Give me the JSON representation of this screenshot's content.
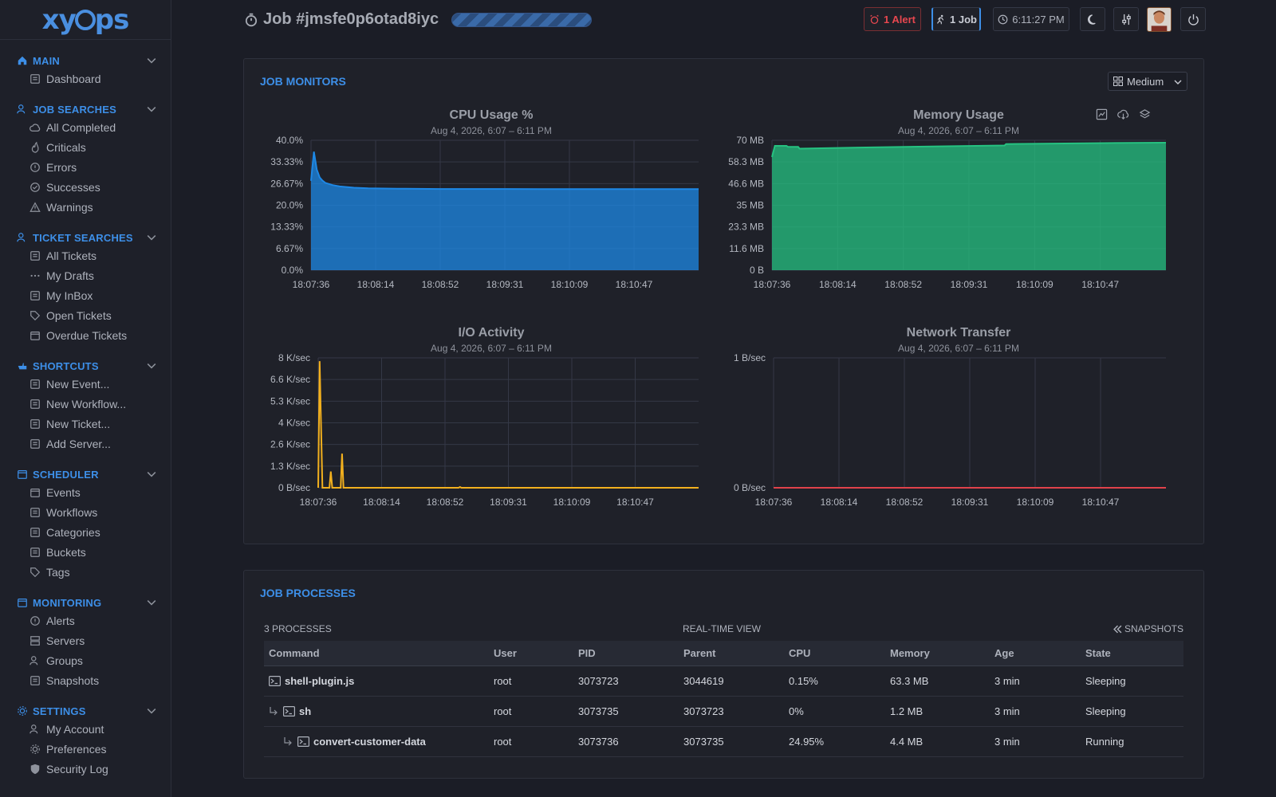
{
  "app": {
    "logo_text_a": "xy",
    "logo_text_b": "ps"
  },
  "sidebar": {
    "sections": [
      {
        "title": "MAIN",
        "icon": "home-icon",
        "items": [
          {
            "label": "Dashboard",
            "icon": "dashboard-icon"
          }
        ]
      },
      {
        "title": "JOB SEARCHES",
        "icon": "user-search-icon",
        "items": [
          {
            "label": "All Completed",
            "icon": "cloud-check-icon"
          },
          {
            "label": "Criticals",
            "icon": "fire-icon"
          },
          {
            "label": "Errors",
            "icon": "alert-circle-icon"
          },
          {
            "label": "Successes",
            "icon": "check-circle-icon"
          },
          {
            "label": "Warnings",
            "icon": "warning-triangle-icon"
          }
        ]
      },
      {
        "title": "TICKET SEARCHES",
        "icon": "ticket-search-icon",
        "items": [
          {
            "label": "All Tickets",
            "icon": "tickets-icon"
          },
          {
            "label": "My Drafts",
            "icon": "dots-icon"
          },
          {
            "label": "My InBox",
            "icon": "inbox-icon"
          },
          {
            "label": "Open Tickets",
            "icon": "label-icon"
          },
          {
            "label": "Overdue Tickets",
            "icon": "calendar-alert-icon"
          }
        ]
      },
      {
        "title": "SHORTCUTS",
        "icon": "hand-pointer-icon",
        "items": [
          {
            "label": "New Event...",
            "icon": "new-event-icon"
          },
          {
            "label": "New Workflow...",
            "icon": "new-workflow-icon"
          },
          {
            "label": "New Ticket...",
            "icon": "new-ticket-icon"
          },
          {
            "label": "Add Server...",
            "icon": "add-server-icon"
          }
        ]
      },
      {
        "title": "SCHEDULER",
        "icon": "calendar-icon",
        "items": [
          {
            "label": "Events",
            "icon": "calendar-clock-icon"
          },
          {
            "label": "Workflows",
            "icon": "workflow-icon"
          },
          {
            "label": "Categories",
            "icon": "folder-icon"
          },
          {
            "label": "Buckets",
            "icon": "bucket-icon"
          },
          {
            "label": "Tags",
            "icon": "tag-icon"
          }
        ]
      },
      {
        "title": "MONITORING",
        "icon": "monitor-camera-icon",
        "items": [
          {
            "label": "Alerts",
            "icon": "alarm-icon"
          },
          {
            "label": "Servers",
            "icon": "server-icon"
          },
          {
            "label": "Groups",
            "icon": "group-icon"
          },
          {
            "label": "Snapshots",
            "icon": "monitor-icon"
          }
        ]
      },
      {
        "title": "SETTINGS",
        "icon": "cogs-icon",
        "items": [
          {
            "label": "My Account",
            "icon": "account-icon"
          },
          {
            "label": "Preferences",
            "icon": "preferences-icon"
          },
          {
            "label": "Security Log",
            "icon": "shield-icon"
          }
        ]
      }
    ]
  },
  "header": {
    "job_title": "Job #jmsfe0p6otad8iyc",
    "alert_label": "1 Alert",
    "jobs_label": "1 Job",
    "clock": "6:11:27 PM"
  },
  "monitors": {
    "title": "JOB MONITORS",
    "size_select": "Medium"
  },
  "chart_data": [
    {
      "type": "area",
      "title": "CPU Usage %",
      "subtitle": "Aug 4, 2026, 6:07 – 6:11 PM",
      "color": "#1e88e5",
      "y_ticks": [
        "40.0%",
        "33.33%",
        "26.67%",
        "20.0%",
        "13.33%",
        "6.67%",
        "0.0%"
      ],
      "x_ticks": [
        "18:07:36",
        "18:08:14",
        "18:08:52",
        "18:09:31",
        "18:10:09",
        "18:10:47"
      ],
      "ylim": [
        0,
        40
      ],
      "x": [
        0,
        2,
        4,
        6,
        8,
        10,
        15,
        20,
        30,
        40,
        60,
        90,
        120,
        160,
        200,
        240,
        271
      ],
      "y": [
        27.5,
        36.5,
        31,
        28.6,
        27.6,
        26.9,
        26.2,
        25.8,
        25.4,
        25.2,
        25.1,
        25.0,
        25.0,
        24.95,
        24.95,
        24.95,
        24.95
      ]
    },
    {
      "type": "area",
      "title": "Memory Usage",
      "subtitle": "Aug 4, 2026, 6:07 – 6:11 PM",
      "color": "#26c281",
      "y_ticks": [
        "70 MB",
        "58.3 MB",
        "46.6 MB",
        "35 MB",
        "23.3 MB",
        "11.6 MB",
        "0 B"
      ],
      "x_ticks": [
        "18:07:36",
        "18:08:14",
        "18:08:52",
        "18:09:31",
        "18:10:09",
        "18:10:47"
      ],
      "ylim": [
        0,
        70
      ],
      "x": [
        0,
        2,
        3,
        10,
        11,
        18,
        19,
        60,
        120,
        160,
        161,
        230,
        271
      ],
      "y": [
        61,
        67,
        67,
        67,
        66.5,
        66.5,
        65.5,
        66.1,
        66.8,
        67.2,
        68,
        68.5,
        68.7
      ]
    },
    {
      "type": "line",
      "title": "I/O Activity",
      "subtitle": "Aug 4, 2026, 6:07 – 6:11 PM",
      "color": "#f2b01e",
      "y_ticks": [
        "8 K/sec",
        "6.6 K/sec",
        "5.3 K/sec",
        "4 K/sec",
        "2.6 K/sec",
        "1.3 K/sec",
        "0 B/sec"
      ],
      "x_ticks": [
        "18:07:36",
        "18:08:14",
        "18:08:52",
        "18:09:31",
        "18:10:09",
        "18:10:47"
      ],
      "ylim": [
        0,
        8
      ],
      "x": [
        0,
        1,
        3,
        8,
        9,
        10,
        16,
        17,
        18,
        100,
        101,
        102,
        271
      ],
      "y": [
        0,
        7.8,
        0,
        0,
        1.0,
        0,
        0,
        2.1,
        0,
        0,
        0.05,
        0,
        0
      ]
    },
    {
      "type": "line",
      "title": "Network Transfer",
      "subtitle": "Aug 4, 2026, 6:07 – 6:11 PM",
      "color": "#e0424b",
      "y_ticks": [
        "1 B/sec",
        "0 B/sec"
      ],
      "x_ticks": [
        "18:07:36",
        "18:08:14",
        "18:08:52",
        "18:09:31",
        "18:10:09",
        "18:10:47"
      ],
      "ylim": [
        0,
        1
      ],
      "x": [
        0,
        271
      ],
      "y": [
        0,
        0
      ]
    }
  ],
  "processes": {
    "title": "JOB PROCESSES",
    "count": "3 PROCESSES",
    "view": "REAL-TIME VIEW",
    "snapshots": "SNAPSHOTS",
    "columns": [
      "Command",
      "User",
      "PID",
      "Parent",
      "CPU",
      "Memory",
      "Age",
      "State"
    ],
    "rows": [
      {
        "command": "shell-plugin.js",
        "depth": 0,
        "user": "root",
        "pid": "3073723",
        "parent": "3044619",
        "cpu": "0.15%",
        "memory": "63.3 MB",
        "age": "3 min",
        "state": "Sleeping"
      },
      {
        "command": "sh",
        "depth": 1,
        "user": "root",
        "pid": "3073735",
        "parent": "3073723",
        "cpu": "0%",
        "memory": "1.2 MB",
        "age": "3 min",
        "state": "Sleeping"
      },
      {
        "command": "convert-customer-data",
        "depth": 2,
        "user": "root",
        "pid": "3073736",
        "parent": "3073735",
        "cpu": "24.95%",
        "memory": "4.4 MB",
        "age": "3 min",
        "state": "Running"
      }
    ]
  }
}
